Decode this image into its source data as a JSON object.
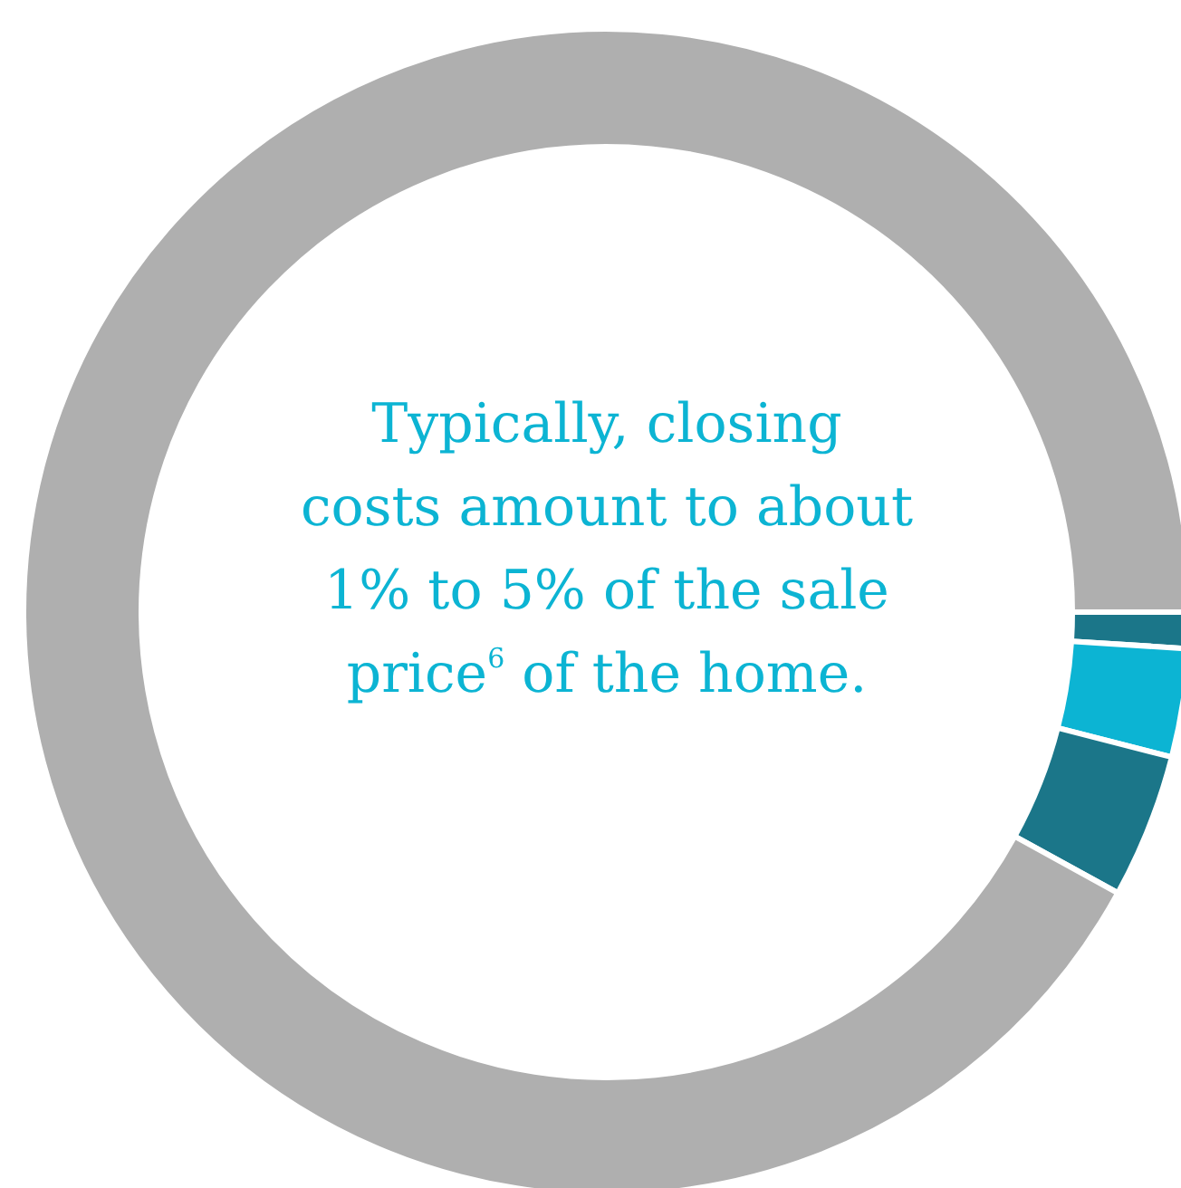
{
  "chart_data": {
    "type": "donut",
    "title": "Typically, closing costs amount to about 1% to 5% of the sale price$^{6}$ of the home.",
    "categories": [
      null,
      null,
      null,
      null
    ],
    "values": [
      1,
      3,
      4,
      92
    ],
    "colors": [
      "#1b7689",
      "#0cb4d3",
      "#1b7689",
      "#afafaf"
    ]
  }
}
